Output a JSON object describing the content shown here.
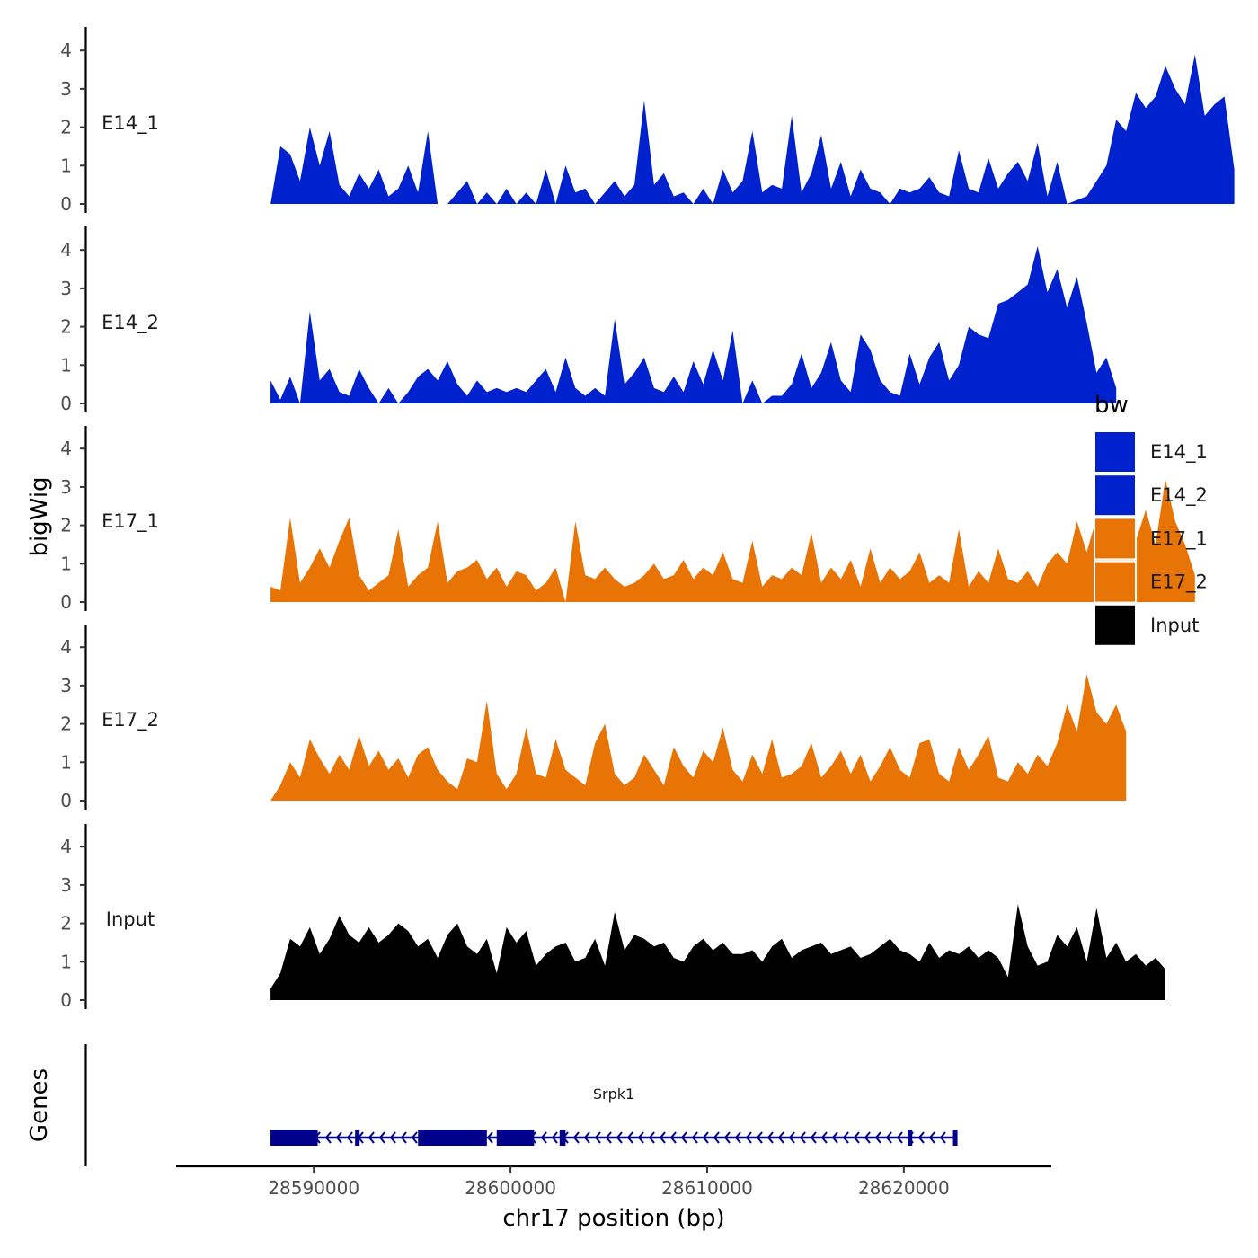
{
  "chart_data": {
    "type": "area",
    "title": "",
    "xlabel": "chr17 position (bp)",
    "ylabel": "bigWig",
    "xlim": [
      28583000,
      28627500
    ],
    "ylim": [
      0,
      4.6
    ],
    "yticks": [
      0,
      1,
      2,
      3,
      4
    ],
    "xticks": [
      28590000,
      28600000,
      28610000,
      28620000
    ],
    "xtick_labels": [
      "28590000",
      "28600000",
      "28610000",
      "28620000"
    ],
    "legend": {
      "title": "bw",
      "position": "right",
      "entries": [
        {
          "label": "E14_1",
          "color": "#0021CE"
        },
        {
          "label": "E14_2",
          "color": "#0021CE"
        },
        {
          "label": "E17_1",
          "color": "#E87405"
        },
        {
          "label": "E17_2",
          "color": "#E87405"
        },
        {
          "label": "Input",
          "color": "#000000"
        }
      ]
    },
    "x_start": 28587800,
    "x_step": 500,
    "series": [
      {
        "name": "E14_1",
        "color": "#0021CE",
        "values": [
          0,
          1.5,
          1.3,
          0.6,
          2.0,
          1.0,
          1.9,
          0.5,
          0.2,
          0.8,
          0.4,
          0.9,
          0.2,
          0.4,
          1.0,
          0.3,
          1.9,
          0,
          0,
          0.3,
          0.6,
          0,
          0.3,
          0,
          0.4,
          0,
          0.3,
          0,
          0.9,
          0,
          1.0,
          0.3,
          0.4,
          0,
          0.3,
          0.6,
          0.2,
          0.5,
          2.7,
          0.5,
          0.8,
          0.2,
          0.3,
          0,
          0.4,
          0,
          0.9,
          0.3,
          0.6,
          1.9,
          0.3,
          0.5,
          0.4,
          2.3,
          0.3,
          0.8,
          1.8,
          0.4,
          1.1,
          0.2,
          0.9,
          0.4,
          0.3,
          0,
          0.4,
          0.3,
          0.4,
          0.7,
          0.3,
          0.2,
          1.4,
          0.4,
          0.3,
          1.2,
          0.4,
          0.8,
          1.1,
          0.6,
          1.6,
          0.2,
          1.1,
          0,
          0.1,
          0.2,
          0.6,
          1.0,
          2.2,
          1.9,
          2.9,
          2.5,
          2.8,
          3.6,
          3.0,
          2.6,
          3.9,
          2.3,
          2.6,
          2.8,
          0.9
        ]
      },
      {
        "name": "E14_2",
        "color": "#0021CE",
        "values": [
          0.6,
          0.1,
          0.7,
          0,
          2.4,
          0.6,
          0.9,
          0.3,
          0.2,
          0.9,
          0.4,
          0,
          0.4,
          0,
          0.3,
          0.7,
          0.9,
          0.6,
          1.1,
          0.5,
          0.2,
          0.6,
          0.3,
          0.4,
          0.3,
          0.4,
          0.3,
          0.6,
          0.9,
          0.3,
          1.2,
          0.4,
          0.2,
          0.4,
          0.2,
          2.2,
          0.5,
          0.8,
          1.2,
          0.4,
          0.3,
          0.7,
          0.3,
          1.1,
          0.5,
          1.4,
          0.6,
          1.9,
          0,
          0.6,
          0,
          0.2,
          0.2,
          0.5,
          1.3,
          0.4,
          0.8,
          1.6,
          0.6,
          0.3,
          1.8,
          1.4,
          0.6,
          0.3,
          0.2,
          1.3,
          0.5,
          1.2,
          1.6,
          0.6,
          1.0,
          2.0,
          1.8,
          1.7,
          2.6,
          2.7,
          2.9,
          3.1,
          4.1,
          2.9,
          3.5,
          2.5,
          3.3,
          2.1,
          0.8,
          1.2,
          0.4
        ]
      },
      {
        "name": "E17_1",
        "color": "#E87405",
        "values": [
          0.4,
          0.3,
          2.2,
          0.5,
          0.9,
          1.4,
          0.9,
          1.6,
          2.2,
          0.7,
          0.3,
          0.5,
          0.7,
          1.9,
          0.4,
          0.7,
          0.9,
          2.1,
          0.5,
          0.8,
          0.9,
          1.1,
          0.6,
          0.9,
          0.4,
          0.8,
          0.7,
          0.3,
          0.5,
          0.9,
          0,
          2.1,
          0.7,
          0.6,
          0.9,
          0.6,
          0.4,
          0.5,
          0.7,
          1.0,
          0.6,
          0.7,
          1.1,
          0.6,
          0.9,
          0.7,
          1.3,
          0.6,
          0.5,
          1.6,
          0.4,
          0.7,
          0.6,
          0.9,
          0.7,
          1.8,
          0.5,
          0.9,
          0.6,
          1.1,
          0.4,
          1.4,
          0.5,
          0.9,
          0.6,
          0.8,
          1.3,
          0.5,
          0.7,
          0.5,
          1.9,
          0.4,
          0.8,
          0.5,
          1.4,
          0.6,
          0.5,
          0.8,
          0.4,
          1.0,
          1.3,
          1.0,
          2.1,
          1.3,
          2.2,
          1.5,
          1.2,
          1.5,
          1.6,
          2.4,
          1.5,
          3.2,
          2.1,
          1.5,
          0.7
        ]
      },
      {
        "name": "E17_2",
        "color": "#E87405",
        "values": [
          0,
          0.4,
          1.0,
          0.6,
          1.6,
          1.1,
          0.7,
          1.2,
          0.8,
          1.7,
          0.9,
          1.3,
          0.8,
          1.1,
          0.6,
          1.2,
          1.4,
          0.8,
          0.5,
          0.3,
          1.1,
          1.0,
          2.6,
          0.7,
          0.3,
          0.7,
          1.9,
          0.7,
          0.6,
          1.6,
          0.8,
          0.6,
          0.4,
          1.5,
          2.0,
          0.7,
          0.4,
          0.6,
          1.2,
          0.8,
          0.4,
          1.4,
          0.9,
          0.6,
          1.3,
          1.0,
          1.9,
          0.8,
          0.5,
          1.2,
          0.7,
          1.6,
          0.6,
          0.7,
          0.9,
          1.5,
          0.6,
          0.9,
          1.3,
          0.7,
          1.2,
          0.5,
          0.9,
          1.4,
          0.8,
          0.6,
          1.5,
          1.6,
          0.7,
          0.5,
          1.4,
          0.8,
          1.2,
          1.7,
          0.6,
          0.5,
          1.0,
          0.7,
          1.2,
          0.9,
          1.5,
          2.5,
          1.8,
          3.3,
          2.3,
          2.0,
          2.5,
          1.8
        ]
      },
      {
        "name": "Input",
        "color": "#000000",
        "values": [
          0.3,
          0.7,
          1.6,
          1.4,
          1.9,
          1.2,
          1.6,
          2.2,
          1.7,
          1.5,
          1.9,
          1.5,
          1.7,
          2.0,
          1.8,
          1.4,
          1.6,
          1.1,
          1.7,
          2.0,
          1.4,
          1.2,
          1.6,
          0.7,
          1.9,
          1.5,
          1.8,
          0.9,
          1.2,
          1.4,
          1.5,
          1.0,
          1.1,
          1.6,
          0.9,
          2.3,
          1.3,
          1.7,
          1.6,
          1.4,
          1.5,
          1.1,
          1.0,
          1.4,
          1.6,
          1.3,
          1.5,
          1.2,
          1.2,
          1.3,
          1.0,
          1.4,
          1.6,
          1.1,
          1.3,
          1.4,
          1.5,
          1.2,
          1.3,
          1.4,
          1.1,
          1.2,
          1.4,
          1.6,
          1.3,
          1.2,
          1.0,
          1.5,
          1.1,
          1.3,
          1.2,
          1.4,
          1.1,
          1.3,
          1.1,
          0.6,
          2.5,
          1.4,
          0.9,
          1.0,
          1.7,
          1.4,
          1.9,
          1.0,
          2.4,
          1.1,
          1.5,
          1.0,
          1.2,
          0.9,
          1.1,
          0.8
        ]
      }
    ],
    "gene_track": {
      "title": "Genes",
      "gene_name": "Srpk1",
      "strand": "-",
      "start": 28587800,
      "end": 28622700,
      "exons": [
        [
          28587800,
          28590200
        ],
        [
          28592100,
          28592300
        ],
        [
          28595300,
          28598800
        ],
        [
          28599300,
          28601200
        ],
        [
          28602500,
          28602800
        ],
        [
          28620200,
          28620400
        ],
        [
          28622500,
          28622600
        ]
      ]
    }
  }
}
